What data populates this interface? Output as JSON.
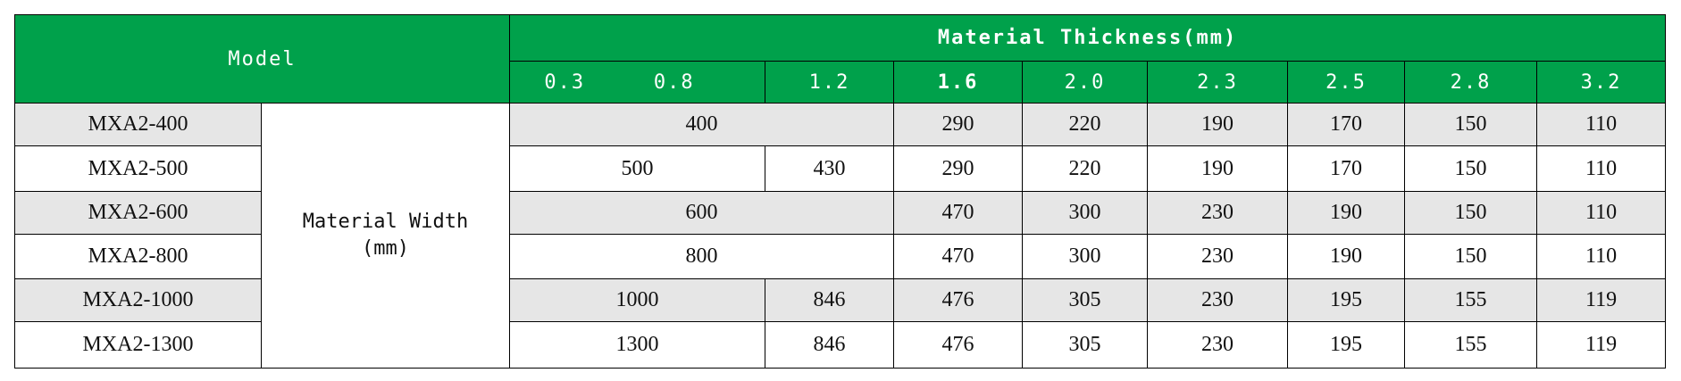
{
  "table": {
    "model_header": "Model",
    "group_header": "Material Thickness(mm)",
    "thickness": [
      "0.3",
      "0.8",
      "1.2",
      "1.6",
      "2.0",
      "2.3",
      "2.5",
      "2.8",
      "3.2"
    ],
    "width_label": [
      "Material Width",
      "(mm)"
    ],
    "rows": [
      {
        "model": "MXA2-400",
        "values": [
          400,
          290,
          220,
          190,
          170,
          150,
          110
        ]
      },
      {
        "model": "MXA2-500",
        "values": [
          500,
          430,
          290,
          220,
          190,
          170,
          150,
          110
        ]
      },
      {
        "model": "MXA2-600",
        "values": [
          600,
          470,
          300,
          230,
          190,
          150,
          110
        ]
      },
      {
        "model": "MXA2-800",
        "values": [
          800,
          470,
          300,
          230,
          190,
          150,
          110
        ]
      },
      {
        "model": "MXA2-1000",
        "values": [
          1000,
          846,
          476,
          305,
          230,
          195,
          155,
          119
        ]
      },
      {
        "model": "MXA2-1300",
        "values": [
          1300,
          846,
          476,
          305,
          230,
          195,
          155,
          119
        ]
      }
    ]
  }
}
